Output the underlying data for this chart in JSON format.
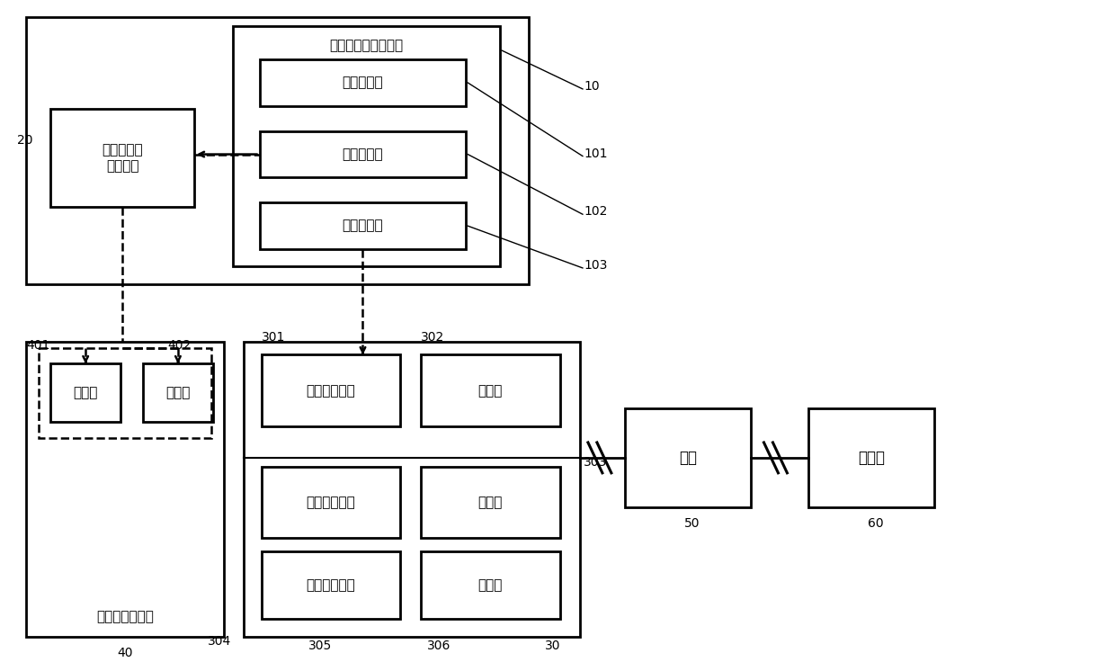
{
  "bg": "#ffffff",
  "t": {
    "tss": "汽轮机功率控制系统",
    "pc": "功率控制器",
    "prc": "压力控制器",
    "sc": "转速控制器",
    "rpc": "反应堆功率\n控制系统",
    "ru": "反应堆功能单元",
    "pr": "功率棒",
    "tr": "温度棒",
    "hpv": "高压缸调节阀",
    "hpw": "高压给水系统",
    "lpw": "低压给水系统",
    "hpc": "高压缸",
    "mc": "中压缸",
    "tb": "汽轮机",
    "gd": "电网",
    "us": "用户端"
  }
}
